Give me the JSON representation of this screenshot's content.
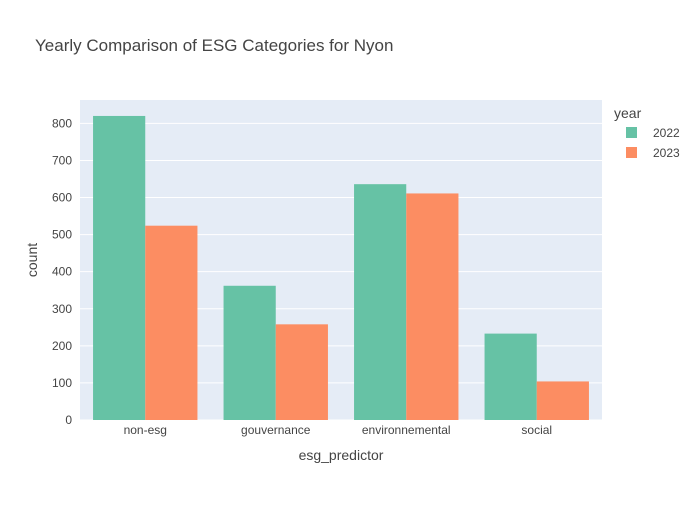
{
  "chart_data": {
    "type": "bar",
    "title": "Yearly Comparison of ESG Categories for Nyon",
    "xlabel": "esg_predictor",
    "ylabel": "count",
    "categories": [
      "non-esg",
      "gouvernance",
      "environnemental",
      "social"
    ],
    "series": [
      {
        "name": "2022",
        "values": [
          820,
          362,
          636,
          233
        ],
        "color": "#66c2a5"
      },
      {
        "name": "2023",
        "values": [
          524,
          258,
          611,
          104
        ],
        "color": "#fc8d62"
      }
    ],
    "ylim": [
      0,
      863
    ],
    "yticks": [
      0,
      100,
      200,
      300,
      400,
      500,
      600,
      700,
      800
    ],
    "grid": true,
    "legend": {
      "title": "year",
      "placement": "top-right"
    },
    "colors": {
      "plot_bg": "#e5ecf6",
      "grid": "#ffffff",
      "text": "#444444",
      "title": "#444444"
    }
  }
}
